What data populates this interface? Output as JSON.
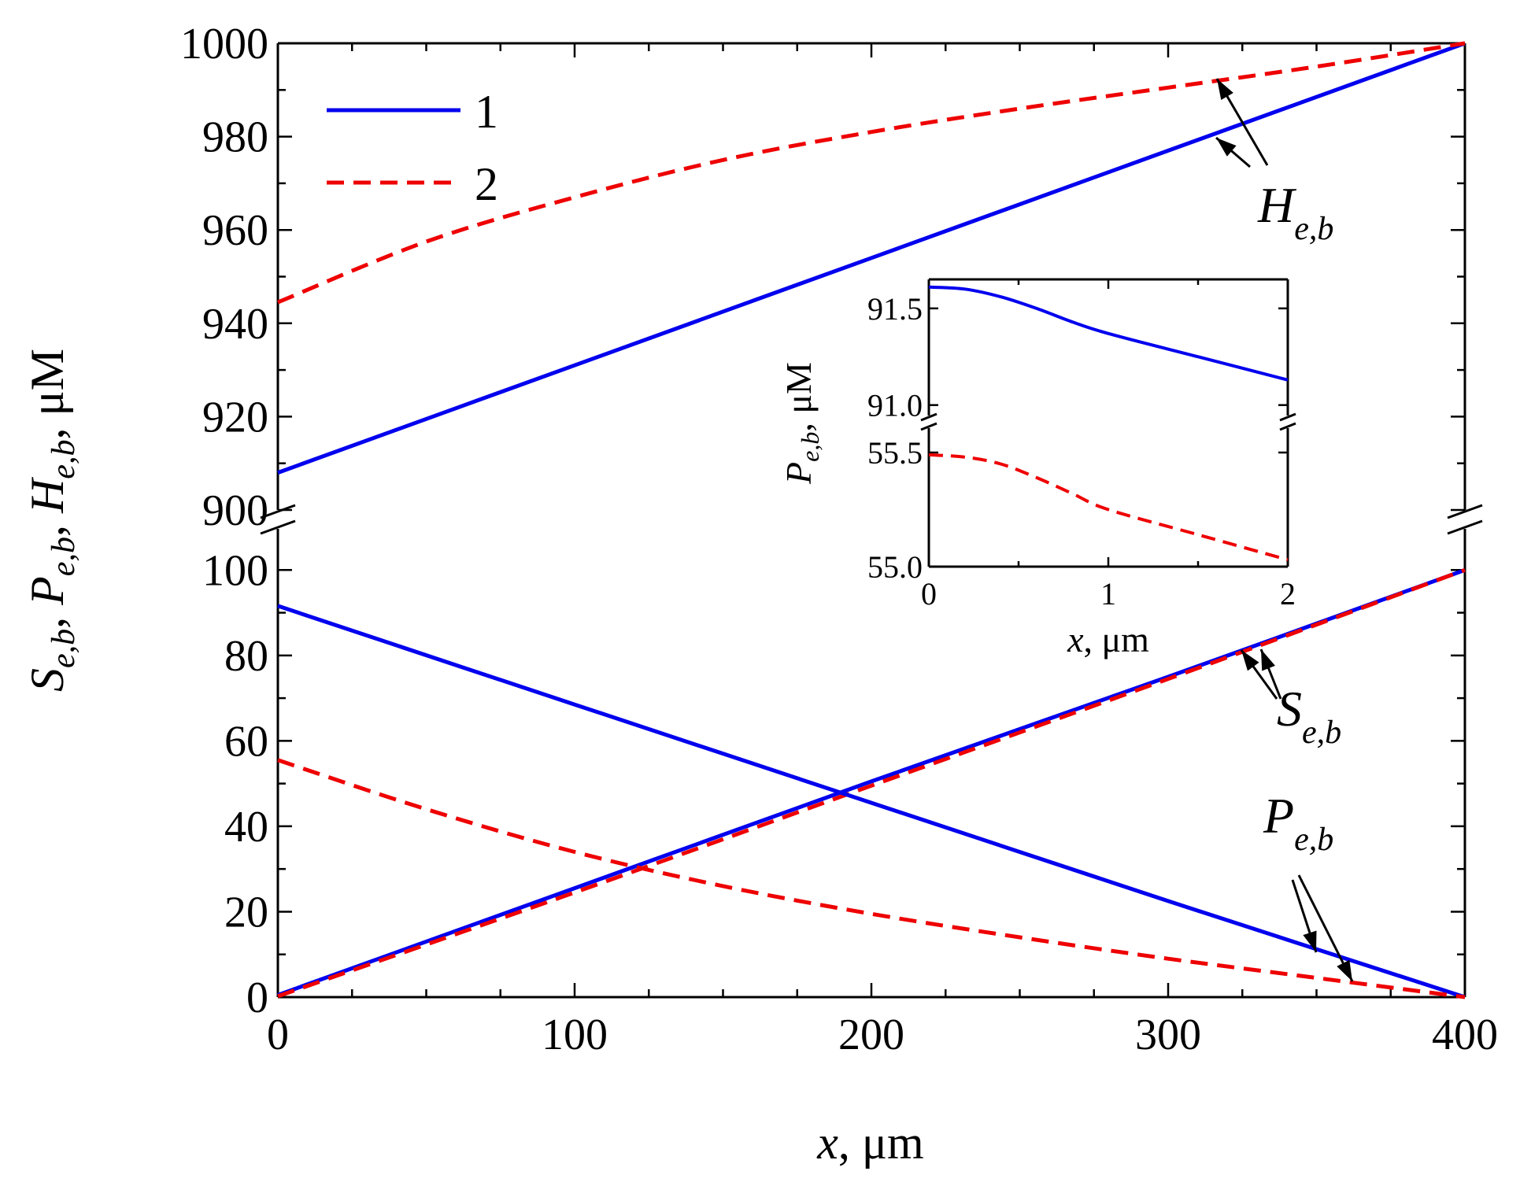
{
  "chart_data": [
    {
      "type": "line",
      "title": "",
      "xlabel": "x, μm",
      "ylabel": "S_e,b, P_e,b, H_e,b, μM",
      "xlim": [
        0,
        400
      ],
      "y_broken_axis": true,
      "lower_ylim": [
        0,
        110
      ],
      "upper_ylim": [
        900,
        1000
      ],
      "x_ticks": [
        0,
        100,
        200,
        300,
        400
      ],
      "lower_y_ticks": [
        0,
        20,
        40,
        60,
        80,
        100
      ],
      "upper_y_ticks": [
        900,
        920,
        940,
        960,
        980,
        1000
      ],
      "grid": false,
      "legend": {
        "placement": "top-left",
        "entries": [
          {
            "label": "1",
            "style": "solid",
            "color": "#0000ee"
          },
          {
            "label": "2",
            "style": "dashed",
            "color": "#ee0000"
          }
        ]
      },
      "annotations": [
        {
          "main": "H",
          "sub": "e,b"
        },
        {
          "main": "S",
          "sub": "e,b"
        },
        {
          "main": "P",
          "sub": "e,b"
        }
      ],
      "series": [
        {
          "name": "1",
          "quantity": "H",
          "color": "#0000ee",
          "style": "solid",
          "x": [
            0,
            100,
            200,
            300,
            400
          ],
          "y": [
            908,
            931,
            954,
            977,
            1000
          ]
        },
        {
          "name": "2",
          "quantity": "H",
          "color": "#ee0000",
          "style": "dashed",
          "x": [
            0,
            50,
            100,
            150,
            200,
            250,
            300,
            350,
            400
          ],
          "y": [
            944.5,
            957.5,
            967,
            975,
            981,
            986,
            990.5,
            995,
            1000
          ]
        },
        {
          "name": "1",
          "quantity": "S",
          "color": "#0000ee",
          "style": "solid",
          "x": [
            0,
            100,
            200,
            300,
            400
          ],
          "y": [
            0.5,
            25.5,
            50.5,
            75,
            100
          ]
        },
        {
          "name": "2",
          "quantity": "S",
          "color": "#ee0000",
          "style": "dashed",
          "x": [
            0,
            100,
            200,
            300,
            400
          ],
          "y": [
            0.2,
            24.5,
            49.5,
            74.5,
            100
          ]
        },
        {
          "name": "1",
          "quantity": "P",
          "color": "#0000ee",
          "style": "solid",
          "x": [
            0,
            100,
            200,
            300,
            400
          ],
          "y": [
            91.6,
            68.5,
            45.5,
            22.5,
            0
          ]
        },
        {
          "name": "2",
          "quantity": "P",
          "color": "#ee0000",
          "style": "dashed",
          "x": [
            0,
            50,
            100,
            150,
            200,
            250,
            300,
            350,
            400
          ],
          "y": [
            55.5,
            44,
            34,
            26,
            19.5,
            14,
            9,
            4.5,
            0
          ]
        }
      ]
    },
    {
      "type": "line",
      "title": "",
      "xlabel": "x, μm",
      "ylabel": "P_e,b, μM",
      "xlim": [
        0,
        2
      ],
      "y_broken_axis": true,
      "lower_ylim": [
        55.0,
        55.6
      ],
      "upper_ylim": [
        90.95,
        91.65
      ],
      "x_ticks": [
        0,
        1,
        2
      ],
      "x_tick_labels": [
        "0",
        "1",
        "2"
      ],
      "lower_y_ticks": [
        55.0,
        55.5
      ],
      "lower_y_tick_labels": [
        "55.0",
        "55.5"
      ],
      "upper_y_ticks": [
        91.0,
        91.5
      ],
      "upper_y_tick_labels": [
        "91.0",
        "91.5"
      ],
      "series": [
        {
          "name": "1",
          "color": "#0000ee",
          "style": "solid",
          "x": [
            0,
            0.2,
            0.4,
            0.6,
            0.8,
            1.0,
            1.5,
            2.0
          ],
          "y": [
            91.61,
            91.6,
            91.56,
            91.5,
            91.43,
            91.37,
            91.25,
            91.13
          ]
        },
        {
          "name": "2",
          "color": "#ee0000",
          "style": "dashed",
          "x": [
            0,
            0.2,
            0.4,
            0.6,
            0.8,
            1.0,
            1.5,
            2.0
          ],
          "y": [
            55.49,
            55.48,
            55.45,
            55.39,
            55.32,
            55.25,
            55.14,
            55.03
          ]
        }
      ]
    }
  ]
}
